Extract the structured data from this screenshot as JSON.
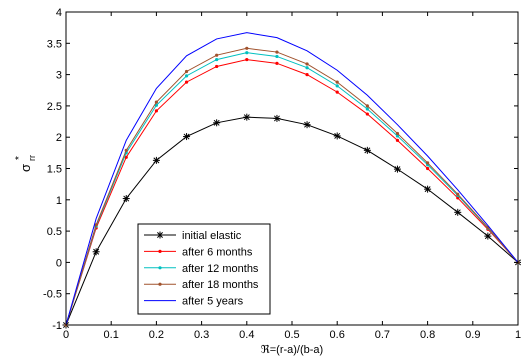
{
  "chart_data": {
    "type": "line",
    "xlabel": "ℜ=(r-a)/(b-a)",
    "ylabel_main": "σ",
    "ylabel_sup": "*",
    "ylabel_sub": "rr",
    "xlim": [
      0,
      1
    ],
    "ylim": [
      -1,
      4
    ],
    "xticks": [
      0,
      0.1,
      0.2,
      0.3,
      0.4,
      0.5,
      0.6,
      0.7,
      0.8,
      0.9,
      1
    ],
    "xtick_labels": [
      "0",
      "0.1",
      "0.2",
      "0.3",
      "0.4",
      "0.5",
      "0.6",
      "0.7",
      "0.8",
      "0.9",
      "1"
    ],
    "yticks": [
      -1,
      -0.5,
      0,
      0.5,
      1,
      1.5,
      2,
      2.5,
      3,
      3.5,
      4
    ],
    "ytick_labels": [
      "-1",
      "-0.5",
      "0",
      "0.5",
      "1",
      "1.5",
      "2",
      "2.5",
      "3",
      "3.5",
      "4"
    ],
    "grid": false,
    "legend_position": "bottom-left",
    "x": [
      0,
      0.0667,
      0.1333,
      0.2,
      0.2667,
      0.3333,
      0.4,
      0.4667,
      0.5333,
      0.6,
      0.6667,
      0.7333,
      0.8,
      0.8667,
      0.9333,
      1
    ],
    "series": [
      {
        "name": "initial elastic",
        "color": "#000000",
        "marker": "star",
        "values": [
          -1,
          0.17,
          1.02,
          1.63,
          2.01,
          2.23,
          2.32,
          2.3,
          2.2,
          2.02,
          1.79,
          1.49,
          1.17,
          0.8,
          0.42,
          0
        ]
      },
      {
        "name": "after 6 months",
        "color": "#ff0000",
        "marker": "dot",
        "values": [
          -1,
          0.55,
          1.68,
          2.42,
          2.88,
          3.13,
          3.24,
          3.18,
          3.0,
          2.72,
          2.37,
          1.95,
          1.5,
          1.03,
          0.53,
          0
        ]
      },
      {
        "name": "after 12 months",
        "color": "#00c0c0",
        "marker": "dot",
        "values": [
          -1,
          0.58,
          1.75,
          2.51,
          2.98,
          3.24,
          3.35,
          3.29,
          3.11,
          2.82,
          2.45,
          2.02,
          1.56,
          1.07,
          0.55,
          0
        ]
      },
      {
        "name": "after 18 months",
        "color": "#a0522d",
        "marker": "dot",
        "values": [
          -1,
          0.6,
          1.79,
          2.56,
          3.05,
          3.31,
          3.42,
          3.36,
          3.17,
          2.88,
          2.5,
          2.06,
          1.59,
          1.09,
          0.56,
          0
        ]
      },
      {
        "name": "after 5 years",
        "color": "#0000ff",
        "marker": "none",
        "values": [
          -1,
          0.7,
          1.95,
          2.78,
          3.3,
          3.57,
          3.67,
          3.59,
          3.38,
          3.07,
          2.67,
          2.2,
          1.7,
          1.16,
          0.59,
          0
        ]
      }
    ]
  }
}
